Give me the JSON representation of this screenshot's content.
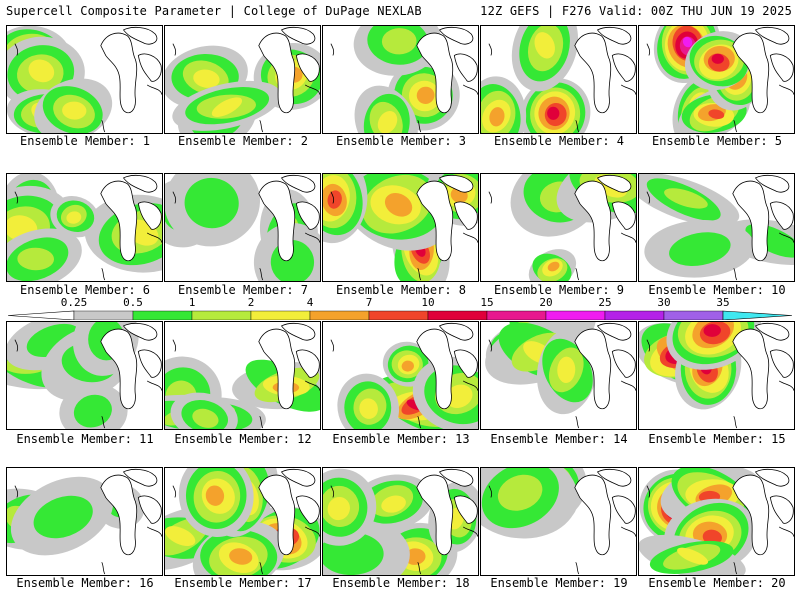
{
  "header": {
    "left": "Supercell Composite Parameter | College of DuPage NEXLAB",
    "right": "12Z GEFS | F276 Valid: 00Z THU JUN 19 2025"
  },
  "colorbar": {
    "levels": [
      "0.25",
      "0.5",
      "1",
      "2",
      "4",
      "7",
      "10",
      "15",
      "20",
      "25",
      "30",
      "35"
    ],
    "colors": [
      "#c8c8c8",
      "#35e835",
      "#b6ea3c",
      "#f2ee3a",
      "#f4a22c",
      "#f0452a",
      "#e0003a",
      "#e8188e",
      "#f01cf0",
      "#b422e8",
      "#a060e8",
      "#40e8f0"
    ]
  },
  "panels": [
    {
      "label": "Ensemble Member: 1",
      "intensity": "high"
    },
    {
      "label": "Ensemble Member: 2",
      "intensity": "med"
    },
    {
      "label": "Ensemble Member: 3",
      "intensity": "med"
    },
    {
      "label": "Ensemble Member: 4",
      "intensity": "high"
    },
    {
      "label": "Ensemble Member: 5",
      "intensity": "very-high"
    },
    {
      "label": "Ensemble Member: 6",
      "intensity": "med"
    },
    {
      "label": "Ensemble Member: 7",
      "intensity": "low"
    },
    {
      "label": "Ensemble Member: 8",
      "intensity": "high"
    },
    {
      "label": "Ensemble Member: 9",
      "intensity": "med"
    },
    {
      "label": "Ensemble Member: 10",
      "intensity": "low"
    },
    {
      "label": "Ensemble Member: 11",
      "intensity": "low"
    },
    {
      "label": "Ensemble Member: 12",
      "intensity": "med"
    },
    {
      "label": "Ensemble Member: 13",
      "intensity": "high"
    },
    {
      "label": "Ensemble Member: 14",
      "intensity": "high"
    },
    {
      "label": "Ensemble Member: 15",
      "intensity": "very-high"
    },
    {
      "label": "Ensemble Member: 16",
      "intensity": "low"
    },
    {
      "label": "Ensemble Member: 17",
      "intensity": "high"
    },
    {
      "label": "Ensemble Member: 18",
      "intensity": "med"
    },
    {
      "label": "Ensemble Member: 19",
      "intensity": "med"
    },
    {
      "label": "Ensemble Member: 20",
      "intensity": "very-high"
    }
  ]
}
